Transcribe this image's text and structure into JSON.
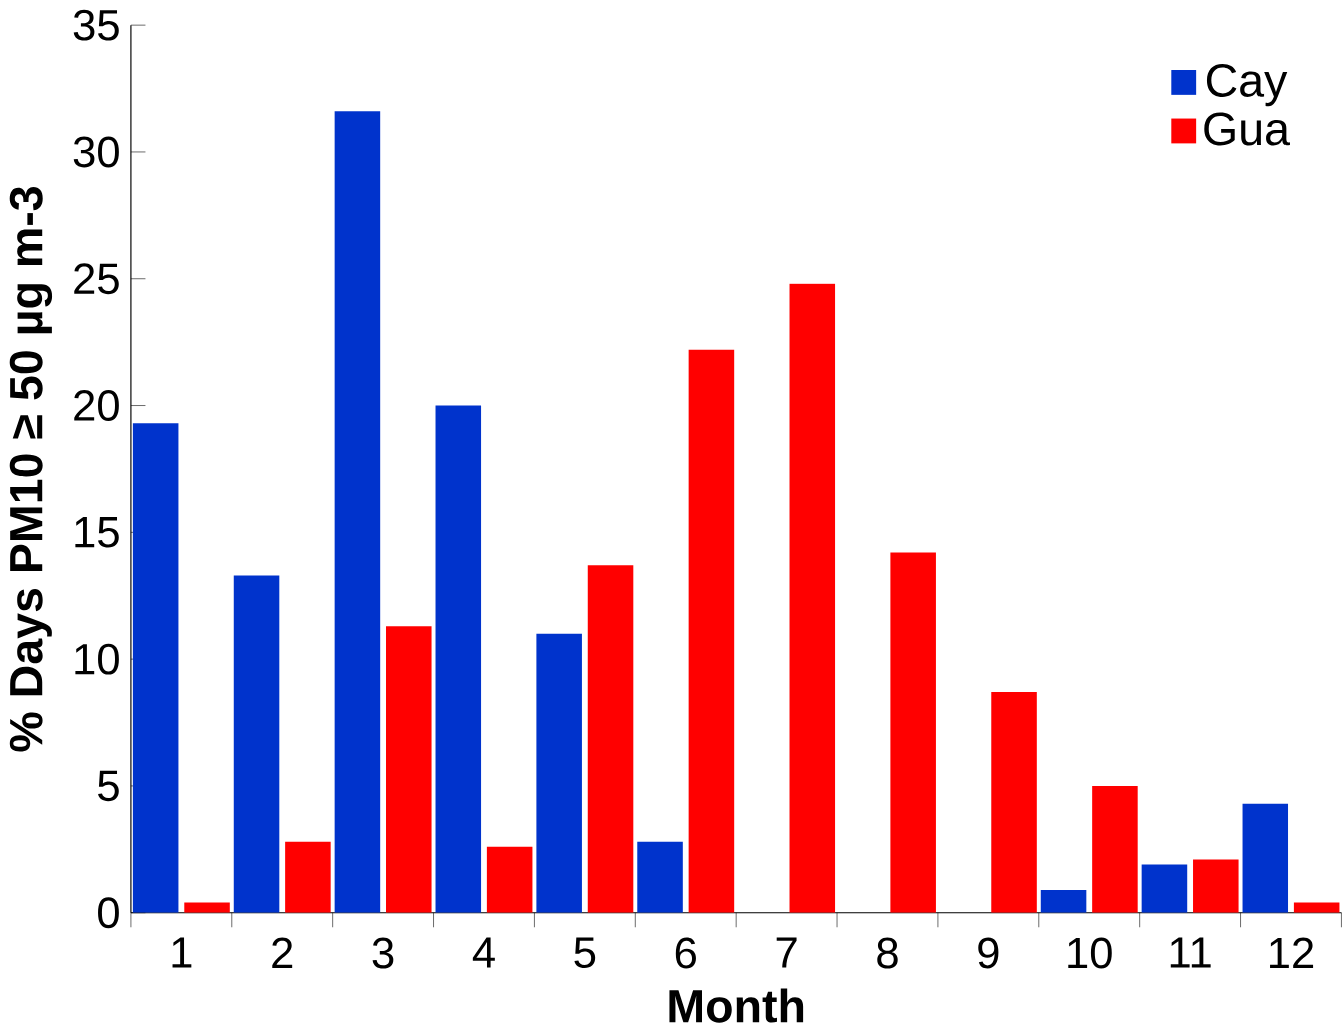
{
  "chart_data": {
    "type": "bar",
    "xlabel": "Month",
    "ylabel": "% Days PM10 ≥ 50 µg m-3",
    "categories": [
      "1",
      "2",
      "3",
      "4",
      "5",
      "6",
      "7",
      "8",
      "9",
      "10",
      "11",
      "12"
    ],
    "series": [
      {
        "name": "Cay",
        "color": "#0033cc",
        "values": [
          19.3,
          13.3,
          31.6,
          20.0,
          11.0,
          2.8,
          0,
          0,
          0,
          0.9,
          1.9,
          4.3
        ]
      },
      {
        "name": "Gua",
        "color": "#ff0000",
        "values": [
          0.4,
          2.8,
          11.3,
          2.6,
          13.7,
          22.2,
          24.8,
          14.2,
          8.7,
          5.0,
          2.1,
          0.4
        ]
      }
    ],
    "ylim": [
      0,
      35
    ],
    "yticks": [
      0,
      5,
      10,
      15,
      20,
      25,
      30,
      35
    ],
    "grid": false,
    "legend": "top right"
  }
}
